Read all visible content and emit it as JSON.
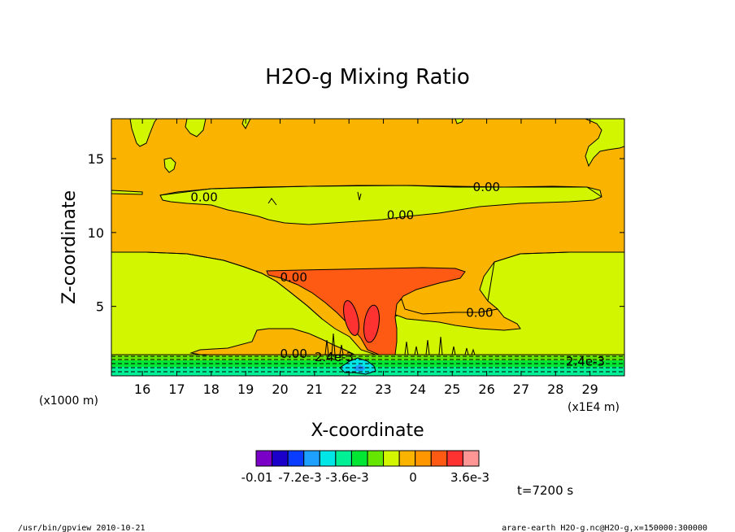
{
  "chart_data": {
    "type": "heatmap",
    "title": "H2O-g Mixing Ratio",
    "xlabel": "X-coordinate",
    "ylabel": "Z-coordinate",
    "x_unit_label": "(x1E4 m)",
    "y_unit_label": "(x1000 m)",
    "xlim": [
      15.1,
      30.0
    ],
    "ylim": [
      0.3,
      17.7
    ],
    "x_ticks": [
      16,
      17,
      18,
      19,
      20,
      21,
      22,
      23,
      24,
      25,
      26,
      27,
      28,
      29
    ],
    "y_ticks": [
      5,
      10,
      15
    ],
    "contour_labels": [
      {
        "text": "0.00",
        "x": 17.4,
        "y": 12.1
      },
      {
        "text": "0.00",
        "x": 25.6,
        "y": 12.8
      },
      {
        "text": "0.00",
        "x": 23.1,
        "y": 10.9
      },
      {
        "text": "0.00",
        "x": 20.0,
        "y": 6.7
      },
      {
        "text": "0.00",
        "x": 25.4,
        "y": 4.3
      },
      {
        "text": "0.00",
        "x": 20.0,
        "y": 1.5
      },
      {
        "text": "2.4e-3",
        "x": 21.0,
        "y": 1.3
      },
      {
        "text": "2.4e-3",
        "x": 28.3,
        "y": 1.0
      }
    ],
    "colorbar": {
      "colors": [
        "#7a00c8",
        "#1a00c8",
        "#0a3cff",
        "#1ea0ff",
        "#00e6e6",
        "#00f096",
        "#00e632",
        "#64e600",
        "#d2f500",
        "#fab400",
        "#ff9600",
        "#ff5a14",
        "#ff3232",
        "#ff9696"
      ],
      "tick_labels": [
        "-0.01",
        "-7.2e-3",
        "-3.6e-3",
        "0",
        "3.6e-3"
      ]
    },
    "annotation_time": "t=7200 s"
  },
  "footer": {
    "left": "/usr/bin/gpview   2010-10-21",
    "right": "arare-earth_H2O-g.nc@H2O-g,x=150000:300000"
  }
}
